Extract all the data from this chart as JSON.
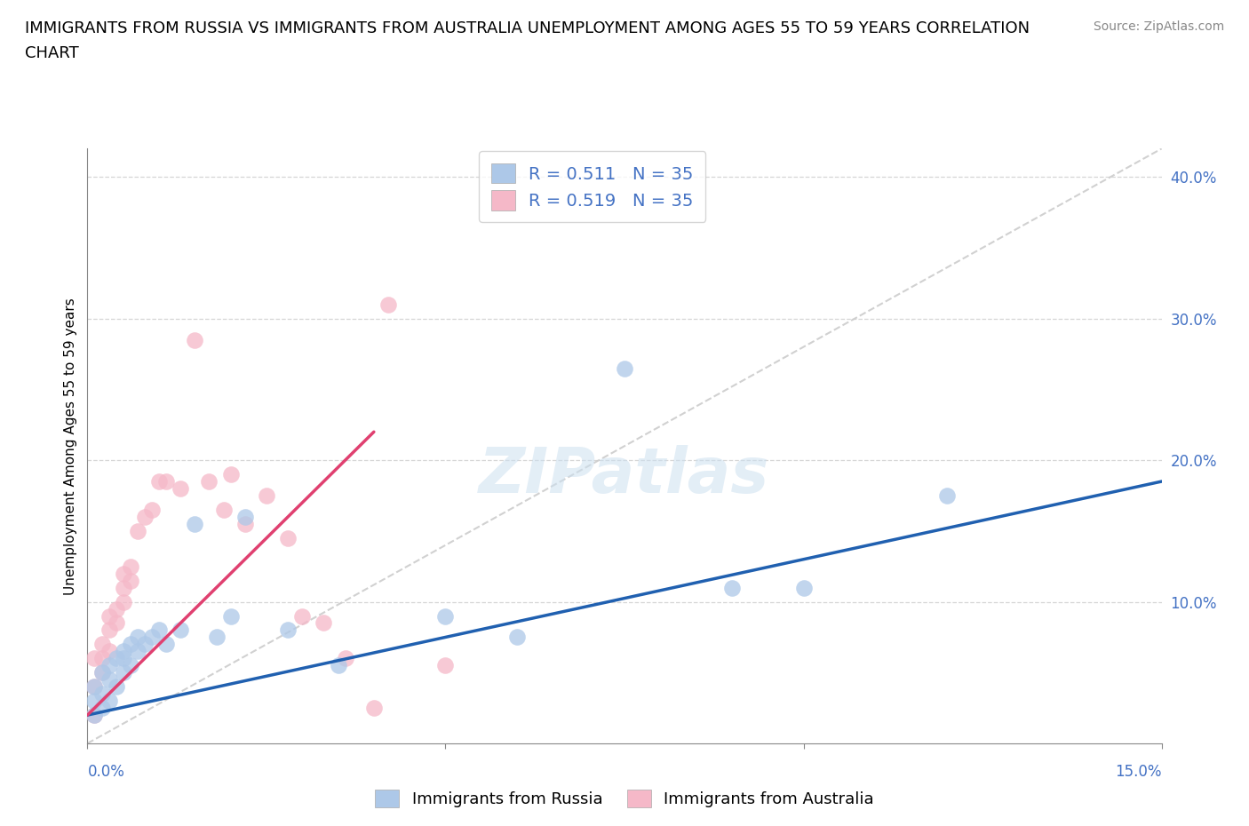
{
  "title_line1": "IMMIGRANTS FROM RUSSIA VS IMMIGRANTS FROM AUSTRALIA UNEMPLOYMENT AMONG AGES 55 TO 59 YEARS CORRELATION",
  "title_line2": "CHART",
  "source": "Source: ZipAtlas.com",
  "ylabel": "Unemployment Among Ages 55 to 59 years",
  "russia_R": 0.511,
  "russia_N": 35,
  "australia_R": 0.519,
  "australia_N": 35,
  "russia_color": "#adc8e8",
  "australia_color": "#f5b8c8",
  "russia_line_color": "#2060b0",
  "australia_line_color": "#e04070",
  "diagonal_color": "#cccccc",
  "legend_russia": "Immigrants from Russia",
  "legend_australia": "Immigrants from Australia",
  "russia_x": [
    0.001,
    0.001,
    0.001,
    0.002,
    0.002,
    0.002,
    0.003,
    0.003,
    0.003,
    0.004,
    0.004,
    0.005,
    0.005,
    0.005,
    0.006,
    0.006,
    0.007,
    0.007,
    0.008,
    0.009,
    0.01,
    0.011,
    0.013,
    0.015,
    0.018,
    0.02,
    0.022,
    0.028,
    0.035,
    0.05,
    0.06,
    0.075,
    0.09,
    0.1,
    0.12
  ],
  "russia_y": [
    0.02,
    0.03,
    0.04,
    0.025,
    0.035,
    0.05,
    0.03,
    0.045,
    0.055,
    0.04,
    0.06,
    0.05,
    0.06,
    0.065,
    0.055,
    0.07,
    0.065,
    0.075,
    0.07,
    0.075,
    0.08,
    0.07,
    0.08,
    0.155,
    0.075,
    0.09,
    0.16,
    0.08,
    0.055,
    0.09,
    0.075,
    0.265,
    0.11,
    0.11,
    0.175
  ],
  "australia_x": [
    0.001,
    0.001,
    0.001,
    0.002,
    0.002,
    0.002,
    0.003,
    0.003,
    0.003,
    0.004,
    0.004,
    0.005,
    0.005,
    0.005,
    0.006,
    0.006,
    0.007,
    0.008,
    0.009,
    0.01,
    0.011,
    0.013,
    0.015,
    0.017,
    0.019,
    0.02,
    0.022,
    0.025,
    0.028,
    0.03,
    0.033,
    0.036,
    0.04,
    0.042,
    0.05
  ],
  "australia_y": [
    0.02,
    0.04,
    0.06,
    0.05,
    0.06,
    0.07,
    0.065,
    0.08,
    0.09,
    0.085,
    0.095,
    0.1,
    0.11,
    0.12,
    0.115,
    0.125,
    0.15,
    0.16,
    0.165,
    0.185,
    0.185,
    0.18,
    0.285,
    0.185,
    0.165,
    0.19,
    0.155,
    0.175,
    0.145,
    0.09,
    0.085,
    0.06,
    0.025,
    0.31,
    0.055
  ],
  "xmin": 0.0,
  "xmax": 0.15,
  "ymin": 0.0,
  "ymax": 0.42,
  "background_color": "#ffffff",
  "title_fontsize": 13,
  "axis_label_fontsize": 11,
  "tick_label_fontsize": 12,
  "tick_color": "#4472c4"
}
